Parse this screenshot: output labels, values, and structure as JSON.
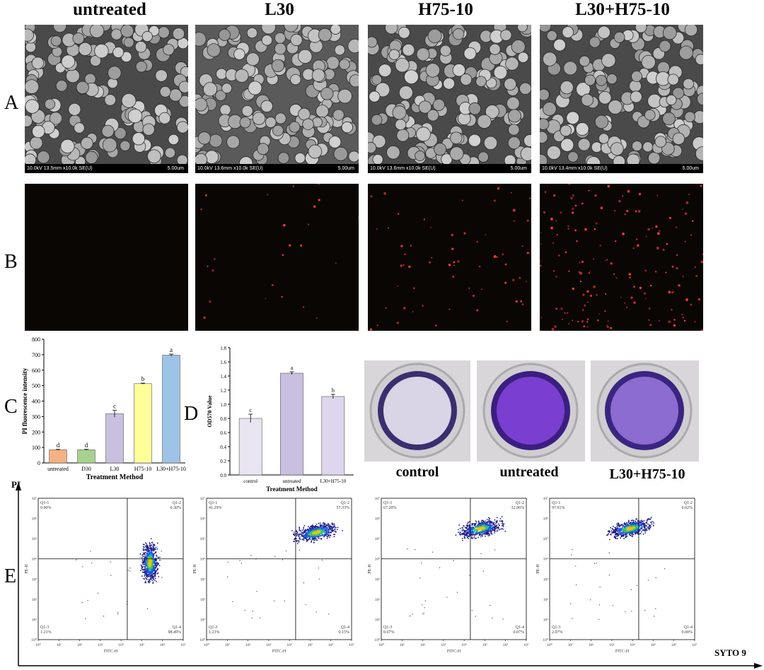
{
  "columns": [
    "untreated",
    "L30",
    "H75-10",
    "L30+H75-10"
  ],
  "row_labels": {
    "a": "A",
    "b": "B",
    "c": "C",
    "d": "D",
    "e": "E"
  },
  "sem": [
    {
      "info": "10.0kV 13.5mm x10.0k SE(U)",
      "scale": "5.00um"
    },
    {
      "info": "10.0kV 13.6mm x10.0k SE(U)",
      "scale": "5.00um"
    },
    {
      "info": "10.0kV 13.6mm x10.0k SE(U)",
      "scale": "5.00um"
    },
    {
      "info": "10.0kV 13.4mm x10.0k SE(U)",
      "scale": "5.00um"
    }
  ],
  "fluorescence_density": [
    0,
    0.15,
    0.4,
    1.0
  ],
  "chart_data": [
    {
      "type": "bar",
      "ylabel": "PI fluorescence intensity",
      "xlabel": "Treatment Method",
      "categories": [
        "untreated",
        "D30",
        "L30",
        "H75-10",
        "L30+H75-10"
      ],
      "values": [
        85,
        85,
        318,
        513,
        697
      ],
      "errors": [
        3,
        3,
        22,
        3,
        7
      ],
      "letters": [
        "d",
        "d",
        "c",
        "b",
        "a"
      ],
      "colors": [
        "#f4b183",
        "#a9d18e",
        "#c9c0e0",
        "#ffff99",
        "#9dc3e6"
      ],
      "ylim": [
        0,
        800
      ],
      "yticks": [
        0,
        100,
        200,
        300,
        400,
        500,
        600,
        700,
        800
      ]
    },
    {
      "type": "bar",
      "ylabel": "OD570 Value",
      "xlabel": "Treatment Method",
      "categories": [
        "control",
        "untreated",
        "L30+H75-10"
      ],
      "values": [
        0.8,
        1.44,
        1.11
      ],
      "errors": [
        0.06,
        0.02,
        0.03
      ],
      "letters": [
        "c",
        "a",
        "b"
      ],
      "colors": [
        "#e8e4f0",
        "#c9bfe0",
        "#ddd6ec"
      ],
      "ylim": [
        0,
        1.8
      ],
      "yticks": [
        "0.0",
        "0.2",
        "0.4",
        "0.6",
        "0.8",
        "1.0",
        "1.2",
        "1.4",
        "1.6",
        "1.8"
      ]
    },
    {
      "type": "scatter",
      "title": "untreated",
      "x_axis": "FITC-H",
      "y_axis": "PE-H",
      "quadrants": {
        "Q1-1": "0.00%",
        "Q1-2": "0.30%",
        "Q1-3": "1.21%",
        "Q1-4": "98.49%"
      },
      "center": [
        5.4,
        3.8
      ]
    },
    {
      "type": "scatter",
      "title": "L30",
      "x_axis": "FITC-H",
      "y_axis": "PE-H",
      "quadrants": {
        "Q1-1": "41.29%",
        "Q1-2": "57.33%",
        "Q1-3": "1.23%",
        "Q1-4": "0.15%"
      },
      "center": [
        5.3,
        5.3
      ]
    },
    {
      "type": "scatter",
      "title": "H75-10",
      "x_axis": "FITC-H",
      "y_axis": "PE-H",
      "quadrants": {
        "Q1-1": "67.20%",
        "Q1-2": "32.06%",
        "Q1-3": "0.67%",
        "Q1-4": "0.07%"
      },
      "center": [
        4.8,
        5.5
      ]
    },
    {
      "type": "scatter",
      "title": "L30+H75-10",
      "x_axis": "FITC-H",
      "y_axis": "PE-H",
      "quadrants": {
        "Q1-1": "97.91%",
        "Q1-2": "0.02%",
        "Q1-3": "2.07%",
        "Q1-4": "0.00%"
      },
      "center": [
        3.9,
        5.5
      ]
    }
  ],
  "wells": {
    "captions": [
      "control",
      "untreated",
      "L30+H75-10"
    ],
    "tints": [
      "#9a85c9",
      "#7a3fd0",
      "#8c6cd0"
    ]
  },
  "flow_axes": {
    "y": "PI",
    "x": "SYTO 9"
  },
  "flow_ticks": [
    "10⁰",
    "10¹",
    "10²",
    "10³",
    "10⁴",
    "10⁵",
    "10⁶",
    "10⁷"
  ]
}
